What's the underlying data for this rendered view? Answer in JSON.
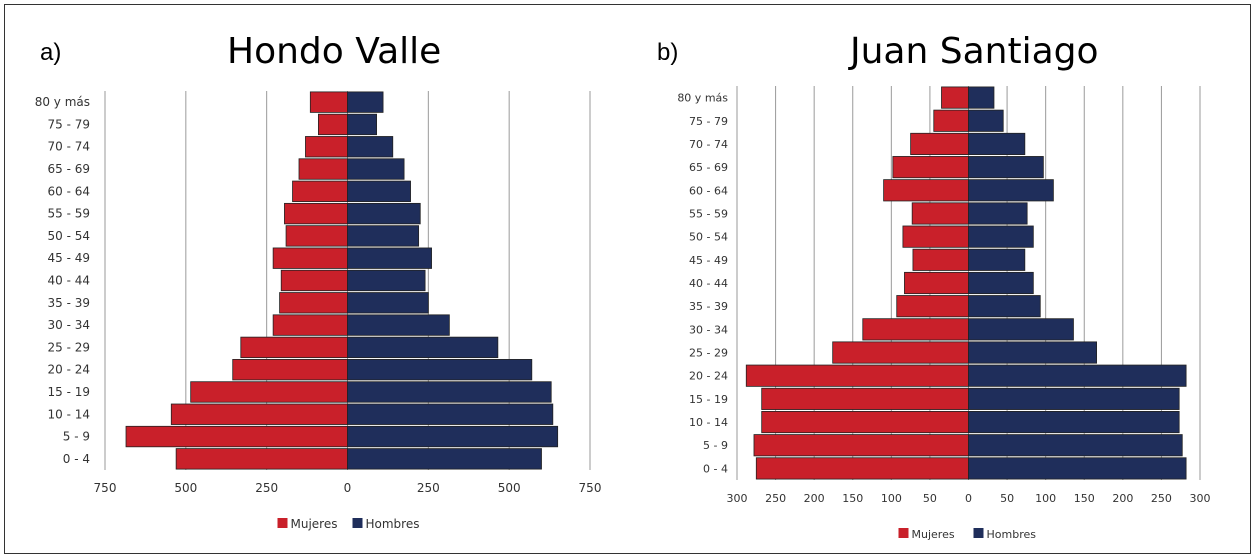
{
  "chart_data": [
    {
      "type": "bar",
      "orientation": "horizontal-population-pyramid",
      "panel_label": "a)",
      "title": "Hondo Valle",
      "categories": [
        "80 y más",
        "75 - 79",
        "70 - 74",
        "65 - 69",
        "60 - 64",
        "55 - 59",
        "50 - 54",
        "45 - 49",
        "40 - 44",
        "35 - 39",
        "30 - 34",
        "25 - 29",
        "20 - 24",
        "15 - 19",
        "10 - 14",
        "5 - 9",
        "0 - 4"
      ],
      "series": [
        {
          "name": "Mujeres",
          "color": "#c9202a",
          "side": "left",
          "values": [
            115,
            90,
            130,
            150,
            170,
            195,
            190,
            230,
            205,
            210,
            230,
            330,
            355,
            485,
            545,
            685,
            530
          ]
        },
        {
          "name": "Hombres",
          "color": "#1f2e5b",
          "side": "right",
          "values": [
            110,
            90,
            140,
            175,
            195,
            225,
            220,
            260,
            240,
            250,
            315,
            465,
            570,
            630,
            635,
            650,
            600
          ]
        }
      ],
      "xticks": [
        "750",
        "500",
        "250",
        "0",
        "250",
        "500",
        "750"
      ],
      "xlim": [
        -750,
        750
      ],
      "grid": "vertical",
      "legend": "bottom-center"
    },
    {
      "type": "bar",
      "orientation": "horizontal-population-pyramid",
      "panel_label": "b)",
      "title": "Juan Santiago",
      "categories": [
        "80 y más",
        "75 - 79",
        "70 - 74",
        "65 - 69",
        "60 - 64",
        "55 - 59",
        "50 - 54",
        "45 - 49",
        "40 - 44",
        "35 - 39",
        "30 - 34",
        "25 - 29",
        "20 - 24",
        "15 - 19",
        "10 - 14",
        "5 - 9",
        "0 - 4"
      ],
      "series": [
        {
          "name": "Mujeres",
          "color": "#c9202a",
          "side": "left",
          "values": [
            35,
            45,
            75,
            98,
            110,
            73,
            85,
            72,
            83,
            93,
            137,
            176,
            288,
            268,
            268,
            278,
            275
          ]
        },
        {
          "name": "Hombres",
          "color": "#1f2e5b",
          "side": "right",
          "values": [
            33,
            45,
            73,
            97,
            110,
            76,
            84,
            73,
            84,
            93,
            136,
            166,
            282,
            273,
            273,
            277,
            282
          ]
        }
      ],
      "xticks": [
        "300",
        "250",
        "200",
        "150",
        "100",
        "50",
        "0",
        "50",
        "100",
        "150",
        "200",
        "250",
        "300"
      ],
      "xlim": [
        -300,
        300
      ],
      "grid": "vertical",
      "legend": "bottom-center"
    }
  ]
}
